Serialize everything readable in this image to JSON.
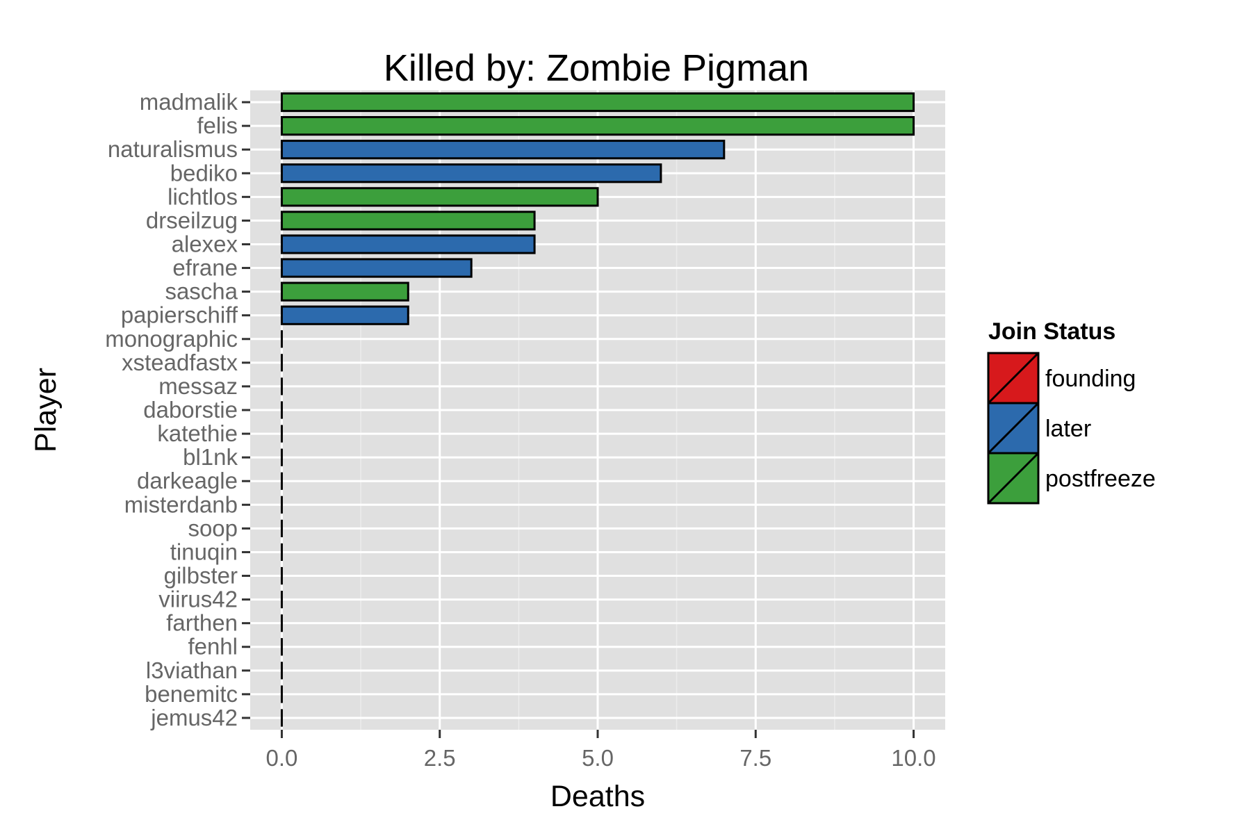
{
  "chart_data": {
    "type": "bar",
    "orientation": "horizontal",
    "title": "Killed by: Zombie Pigman",
    "xlabel": "Deaths",
    "ylabel": "Player",
    "xlim": [
      -0.5,
      10.5
    ],
    "x_ticks": [
      "0.0",
      "2.5",
      "5.0",
      "7.5",
      "10.0"
    ],
    "x_tick_values": [
      0,
      2.5,
      5,
      7.5,
      10
    ],
    "grid": true,
    "legend": {
      "title": "Join Status",
      "placement": "right",
      "entries": [
        {
          "label": "founding",
          "color": "#d7191c"
        },
        {
          "label": "later",
          "color": "#2c6aad"
        },
        {
          "label": "postfreeze",
          "color": "#3c9f3c"
        }
      ]
    },
    "bars": [
      {
        "player": "madmalik",
        "deaths": 10,
        "status": "postfreeze"
      },
      {
        "player": "felis",
        "deaths": 10,
        "status": "postfreeze"
      },
      {
        "player": "naturalismus",
        "deaths": 7,
        "status": "later"
      },
      {
        "player": "bediko",
        "deaths": 6,
        "status": "later"
      },
      {
        "player": "lichtlos",
        "deaths": 5,
        "status": "postfreeze"
      },
      {
        "player": "drseilzug",
        "deaths": 4,
        "status": "postfreeze"
      },
      {
        "player": "alexex",
        "deaths": 4,
        "status": "later"
      },
      {
        "player": "efrane",
        "deaths": 3,
        "status": "later"
      },
      {
        "player": "sascha",
        "deaths": 2,
        "status": "postfreeze"
      },
      {
        "player": "papierschiff",
        "deaths": 2,
        "status": "later"
      },
      {
        "player": "monographic",
        "deaths": 0,
        "status": null
      },
      {
        "player": "xsteadfastx",
        "deaths": 0,
        "status": null
      },
      {
        "player": "messaz",
        "deaths": 0,
        "status": null
      },
      {
        "player": "daborstie",
        "deaths": 0,
        "status": null
      },
      {
        "player": "katethie",
        "deaths": 0,
        "status": null
      },
      {
        "player": "bl1nk",
        "deaths": 0,
        "status": null
      },
      {
        "player": "darkeagle",
        "deaths": 0,
        "status": null
      },
      {
        "player": "misterdanb",
        "deaths": 0,
        "status": null
      },
      {
        "player": "soop",
        "deaths": 0,
        "status": null
      },
      {
        "player": "tinuqin",
        "deaths": 0,
        "status": null
      },
      {
        "player": "gilbster",
        "deaths": 0,
        "status": null
      },
      {
        "player": "viirus42",
        "deaths": 0,
        "status": null
      },
      {
        "player": "farthen",
        "deaths": 0,
        "status": null
      },
      {
        "player": "fenhl",
        "deaths": 0,
        "status": null
      },
      {
        "player": "l3viathan",
        "deaths": 0,
        "status": null
      },
      {
        "player": "benemitc",
        "deaths": 0,
        "status": null
      },
      {
        "player": "jemus42",
        "deaths": 0,
        "status": null
      }
    ],
    "colors": {
      "panel_background": "#e0e0e0",
      "grid_major": "#ffffff",
      "grid_minor": "#ececec",
      "bar_outline": "#000000"
    }
  }
}
